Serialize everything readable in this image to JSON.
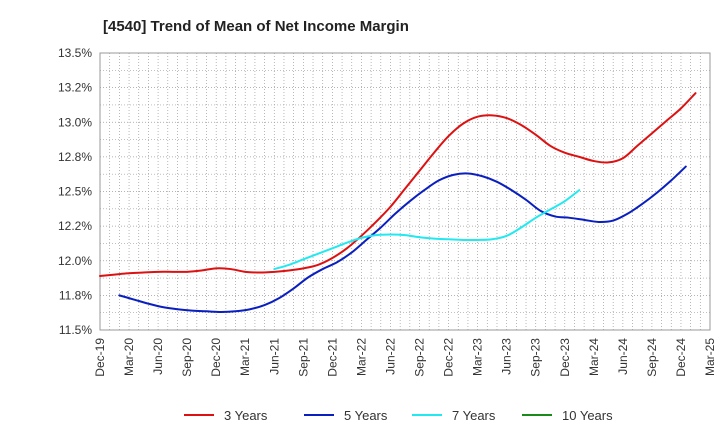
{
  "chart_data": {
    "type": "line",
    "title": "[4540]  Trend of Mean of Net Income Margin",
    "xlabel": "",
    "ylabel": "",
    "ylim": [
      11.5,
      13.5
    ],
    "y_ticks": [
      "11.5%",
      "11.8%",
      "12.0%",
      "12.2%",
      "12.5%",
      "12.8%",
      "13.0%",
      "13.2%",
      "13.5%"
    ],
    "y_tick_values": [
      11.5,
      11.75,
      12.0,
      12.25,
      12.5,
      12.75,
      13.0,
      13.25,
      13.5
    ],
    "x_ticks": [
      "Dec-19",
      "Mar-20",
      "Jun-20",
      "Sep-20",
      "Dec-20",
      "Mar-21",
      "Jun-21",
      "Sep-21",
      "Dec-21",
      "Mar-22",
      "Jun-22",
      "Sep-22",
      "Dec-22",
      "Mar-23",
      "Jun-23",
      "Sep-23",
      "Dec-23",
      "Mar-24",
      "Jun-24",
      "Sep-24",
      "Dec-24",
      "Mar-25"
    ],
    "grid": true,
    "legend_position": "bottom",
    "series": [
      {
        "name": "3 Years",
        "color": "#dd1111",
        "start_index": 0,
        "values": [
          11.89,
          11.9,
          11.91,
          11.915,
          11.92,
          11.92,
          11.92,
          11.93,
          11.945,
          11.94,
          11.92,
          11.915,
          11.92,
          11.93,
          11.945,
          11.97,
          12.02,
          12.09,
          12.18,
          12.28,
          12.39,
          12.52,
          12.65,
          12.78,
          12.9,
          12.99,
          13.04,
          13.05,
          13.03,
          12.98,
          12.91,
          12.83,
          12.78,
          12.75,
          12.72,
          12.71,
          12.74,
          12.83,
          12.92,
          13.01,
          13.1,
          13.21
        ]
      },
      {
        "name": "5 Years",
        "color": "#0a1fbf",
        "start_index": 2,
        "values": [
          11.75,
          11.72,
          11.69,
          11.665,
          11.65,
          11.64,
          11.635,
          11.63,
          11.635,
          11.65,
          11.68,
          11.73,
          11.8,
          11.88,
          11.94,
          11.99,
          12.06,
          12.15,
          12.24,
          12.34,
          12.43,
          12.51,
          12.58,
          12.62,
          12.63,
          12.61,
          12.57,
          12.51,
          12.44,
          12.36,
          12.32,
          12.31,
          12.295,
          12.28,
          12.29,
          12.34,
          12.41,
          12.49,
          12.58,
          12.68
        ]
      },
      {
        "name": "7 Years",
        "color": "#22e8f0",
        "start_index": 18,
        "values": [
          11.94,
          11.97,
          12.01,
          12.05,
          12.09,
          12.13,
          12.165,
          12.185,
          12.19,
          12.185,
          12.17,
          12.16,
          12.155,
          12.15,
          12.15,
          12.155,
          12.18,
          12.24,
          12.31,
          12.37,
          12.43,
          12.51
        ]
      },
      {
        "name": "10 Years",
        "color": "#1a8a1a",
        "start_index": 0,
        "values": []
      }
    ]
  }
}
